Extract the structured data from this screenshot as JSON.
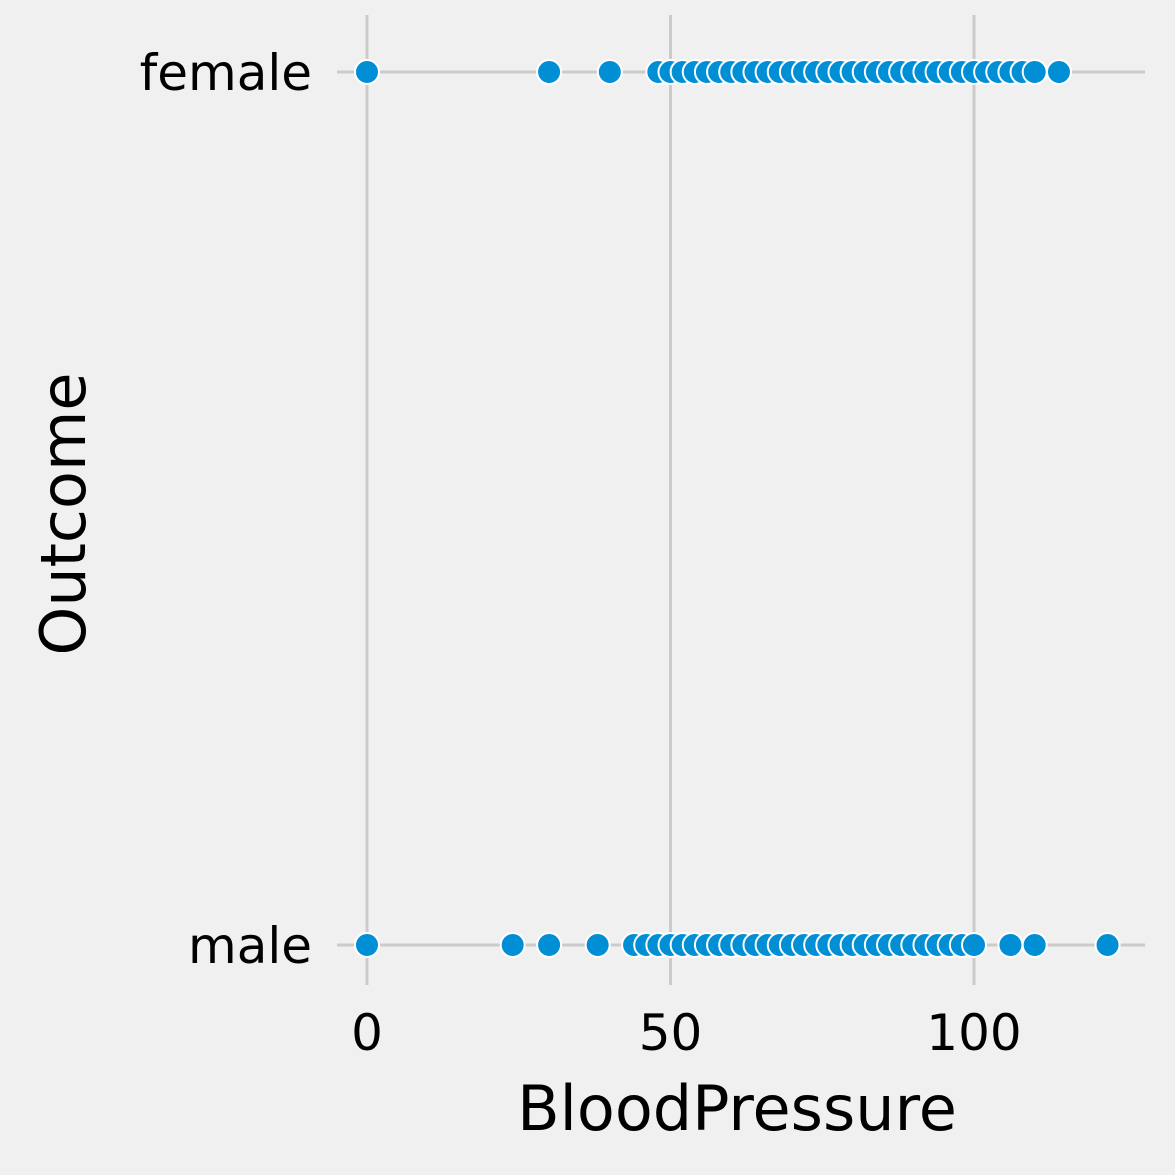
{
  "chart_data": {
    "type": "scatter",
    "title": "",
    "xlabel": "BloodPressure",
    "ylabel": "Outcome",
    "xlim": [
      -5,
      127
    ],
    "x_ticks": [
      0,
      50,
      100
    ],
    "x_tick_labels": [
      "0",
      "50",
      "100"
    ],
    "y_categories": [
      "female",
      "male"
    ],
    "grid": true,
    "colors": {
      "background": "#f0f0f0",
      "grid": "#cbcbcb",
      "marker_fill": "#008fd5",
      "marker_edge": "#ffffff"
    },
    "points": [
      {
        "category": "female",
        "x": [
          0,
          30,
          40,
          48,
          50,
          52,
          54,
          56,
          58,
          60,
          62,
          64,
          66,
          68,
          70,
          72,
          74,
          76,
          78,
          80,
          82,
          84,
          86,
          88,
          90,
          92,
          94,
          96,
          98,
          100,
          102,
          104,
          106,
          108,
          110,
          114
        ]
      },
      {
        "category": "male",
        "x": [
          0,
          24,
          30,
          38,
          44,
          46,
          48,
          50,
          52,
          54,
          56,
          58,
          60,
          62,
          64,
          66,
          68,
          70,
          72,
          74,
          76,
          78,
          80,
          82,
          84,
          86,
          88,
          90,
          92,
          94,
          96,
          98,
          100,
          106,
          110,
          122
        ]
      }
    ]
  }
}
